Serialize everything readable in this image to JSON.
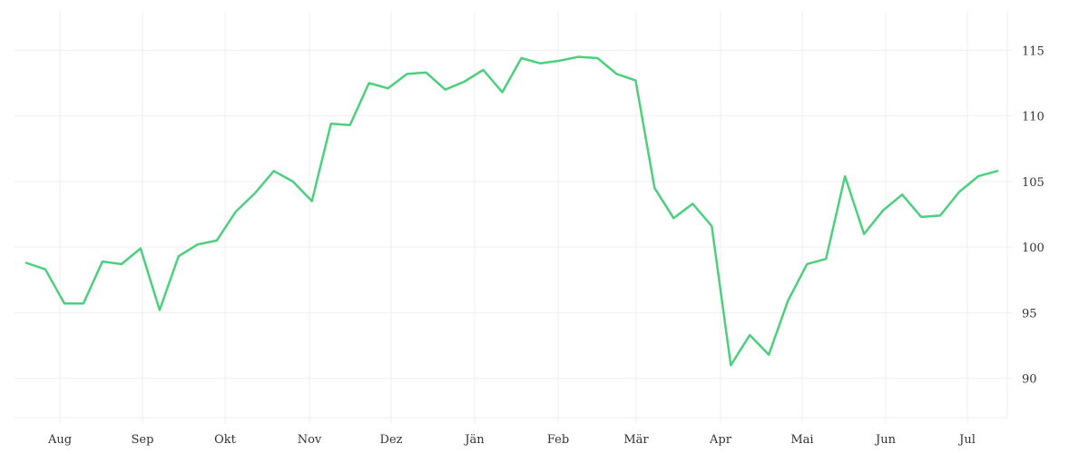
{
  "chart_data": {
    "type": "line",
    "title": "",
    "xlabel": "",
    "ylabel": "",
    "x_ticks": [
      "Aug",
      "Sep",
      "Okt",
      "Nov",
      "Dez",
      "Jän",
      "Feb",
      "Mär",
      "Apr",
      "Mai",
      "Jun",
      "Jul"
    ],
    "y_ticks": [
      90,
      95,
      100,
      105,
      110,
      115
    ],
    "ylim": [
      87,
      118
    ],
    "y_axis_side": "right",
    "grid": true,
    "legend": "none",
    "series": [
      {
        "color": "#4cd07d",
        "points": [
          [
            "Jul 18",
            98.8
          ],
          [
            "Jul 25",
            98.3
          ],
          [
            "Aug 1",
            95.7
          ],
          [
            "Aug 8",
            95.7
          ],
          [
            "Aug 15",
            98.9
          ],
          [
            "Aug 22",
            98.7
          ],
          [
            "Aug 29",
            99.9
          ],
          [
            "Sep 5",
            95.2
          ],
          [
            "Sep 12",
            99.3
          ],
          [
            "Sep 19",
            100.2
          ],
          [
            "Sep 26",
            100.5
          ],
          [
            "Okt 3",
            102.7
          ],
          [
            "Okt 10",
            104.1
          ],
          [
            "Okt 17",
            105.8
          ],
          [
            "Okt 24",
            105.0
          ],
          [
            "Okt 31",
            103.5
          ],
          [
            "Nov 7",
            109.4
          ],
          [
            "Nov 14",
            109.3
          ],
          [
            "Nov 21",
            112.5
          ],
          [
            "Nov 28",
            112.1
          ],
          [
            "Dez 5",
            113.2
          ],
          [
            "Dez 12",
            113.3
          ],
          [
            "Dez 19",
            112.0
          ],
          [
            "Dez 26",
            112.6
          ],
          [
            "Jän 2",
            113.5
          ],
          [
            "Jän 9",
            111.8
          ],
          [
            "Jän 16",
            114.4
          ],
          [
            "Jän 23",
            114.0
          ],
          [
            "Jan 30",
            114.2
          ],
          [
            "Feb 6",
            114.5
          ],
          [
            "Feb 13",
            114.4
          ],
          [
            "Feb 20",
            113.2
          ],
          [
            "Feb 27",
            112.7
          ],
          [
            "Mär 6",
            104.5
          ],
          [
            "Mär 13",
            102.2
          ],
          [
            "Mär 20",
            103.3
          ],
          [
            "Mär 27",
            101.6
          ],
          [
            "Apr 3",
            91.0
          ],
          [
            "Apr 10",
            93.3
          ],
          [
            "Apr 17",
            91.8
          ],
          [
            "Apr 24",
            95.9
          ],
          [
            "Mai 1",
            98.7
          ],
          [
            "Mai 8",
            99.1
          ],
          [
            "Mai 15",
            105.4
          ],
          [
            "Mai 22",
            101.0
          ],
          [
            "Mai 29",
            102.8
          ],
          [
            "Jun 5",
            104.0
          ],
          [
            "Jun 12",
            102.3
          ],
          [
            "Jun 19",
            102.4
          ],
          [
            "Jun 26",
            104.2
          ],
          [
            "Jul 3",
            105.4
          ],
          [
            "Jul 10",
            105.8
          ]
        ]
      }
    ]
  }
}
